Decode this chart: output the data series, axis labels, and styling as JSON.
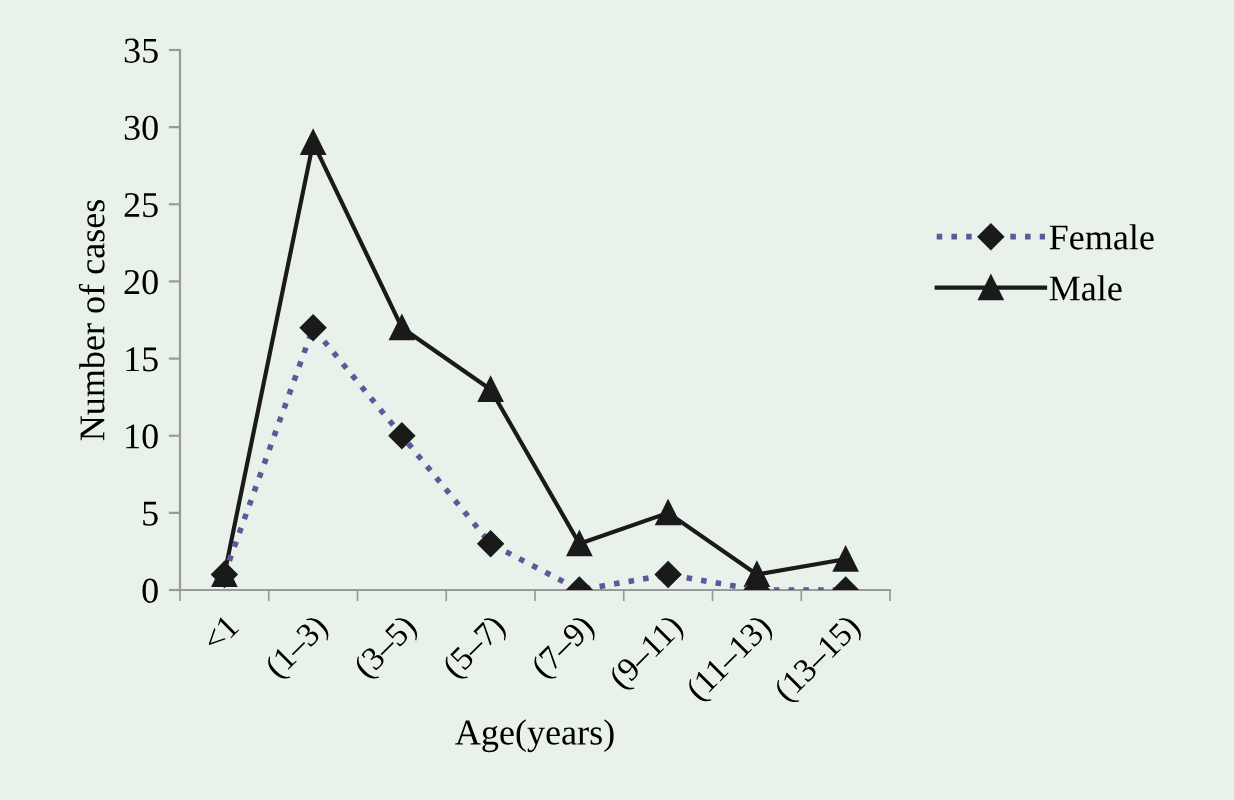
{
  "chart_data": {
    "type": "line",
    "xlabel": "Age(years)",
    "ylabel": "Number of cases",
    "categories": [
      "<1",
      "(1–3)",
      "(3–5)",
      "(5–7)",
      "(7–9)",
      "(9–11)",
      "(11–13)",
      "(13–15)"
    ],
    "series": [
      {
        "name": "Female",
        "color": "#5a5a9a",
        "marker": "diamond",
        "line_style": "dotted",
        "values": [
          1,
          17,
          10,
          3,
          0,
          1,
          0,
          0
        ]
      },
      {
        "name": "Male",
        "color": "#1a1a1a",
        "marker": "triangle",
        "line_style": "solid",
        "values": [
          1,
          29,
          17,
          13,
          3,
          5,
          1,
          2
        ]
      }
    ],
    "ylim": [
      0,
      35
    ],
    "yticks": [
      0,
      5,
      10,
      15,
      20,
      25,
      30,
      35
    ],
    "grid": false,
    "legend": "right"
  }
}
